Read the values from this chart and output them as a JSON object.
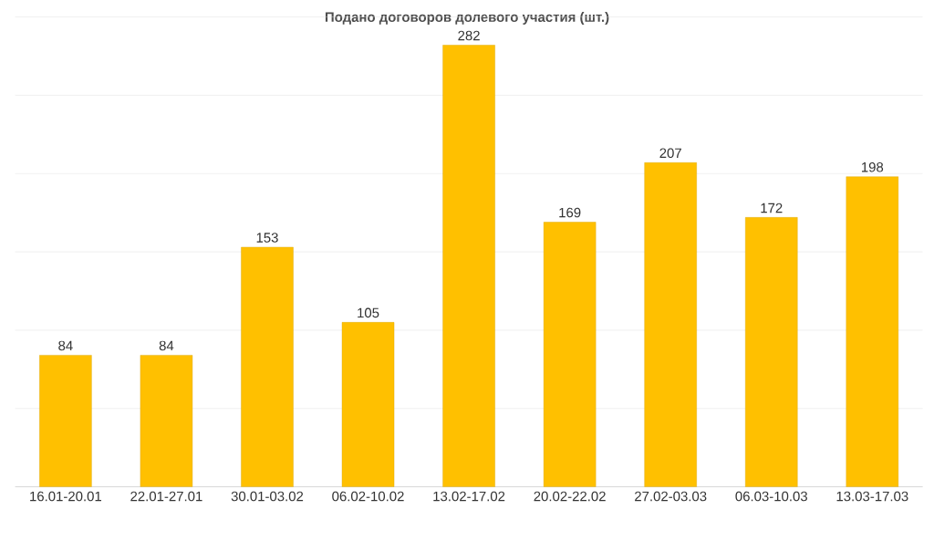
{
  "chart_data": {
    "type": "bar",
    "title": "Подано договоров долевого участия (шт.)",
    "categories": [
      "16.01-20.01",
      "22.01-27.01",
      "30.01-03.02",
      "06.02-10.02",
      "13.02-17.02",
      "20.02-22.02",
      "27.02-03.03",
      "06.03-10.03",
      "13.03-17.03"
    ],
    "values": [
      84,
      84,
      153,
      105,
      282,
      169,
      207,
      172,
      198
    ],
    "color": "#ffc000",
    "ylim": [
      0,
      300
    ],
    "yticks": [
      {
        "value": 0,
        "label": null
      },
      {
        "value": 50,
        "label": null
      },
      {
        "value": 100,
        "label": null
      },
      {
        "value": 150,
        "label": null
      },
      {
        "value": 200,
        "label": null
      },
      {
        "value": 250,
        "label": null
      },
      {
        "value": 300,
        "label": null
      }
    ],
    "grid": "y",
    "tick_labels": "x",
    "data_labels": true
  }
}
